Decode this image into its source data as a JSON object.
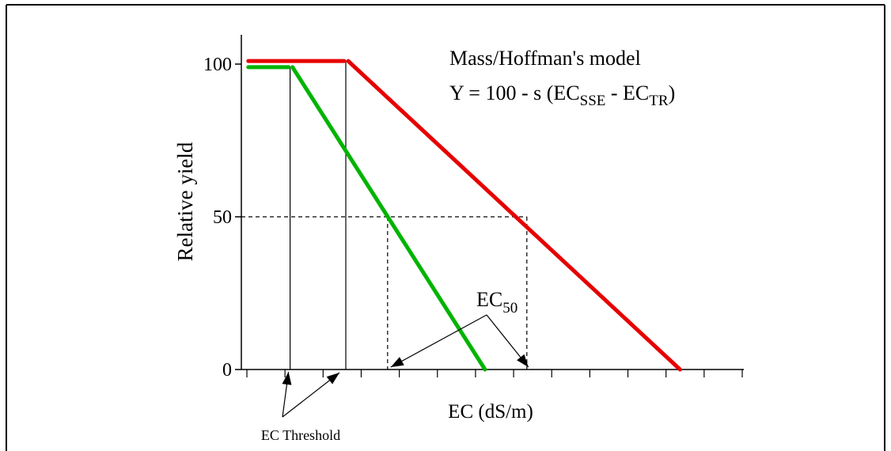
{
  "chart_data": {
    "type": "line",
    "title": "",
    "xlabel": "EC (dS/m)",
    "ylabel": "Relative yield",
    "ylim": [
      0,
      100
    ],
    "yticks": [
      "0",
      "50",
      "100"
    ],
    "x_ticks_count": 14,
    "grid": false,
    "series": [
      {
        "color": "#00b400",
        "x": [
          0.1,
          0.7,
          3.5
        ],
        "y": [
          99,
          99,
          0
        ],
        "threshold": 0.7,
        "ec50": 2.1
      },
      {
        "color": "#e60000",
        "x": [
          0.1,
          1.5,
          6.3
        ],
        "y": [
          101,
          101,
          0
        ],
        "threshold": 1.5,
        "ec50": 4.1
      }
    ],
    "annotations": {
      "model_title": "Mass/Hoffman's model",
      "equation_prefix": "Y = 100 - s (EC",
      "equation_sub1": "SSE",
      "equation_mid": " - EC",
      "equation_sub2": "TR",
      "equation_suffix": ")",
      "ec50_main": "EC",
      "ec50_sub": "50",
      "ec_threshold": "EC Threshold"
    }
  }
}
